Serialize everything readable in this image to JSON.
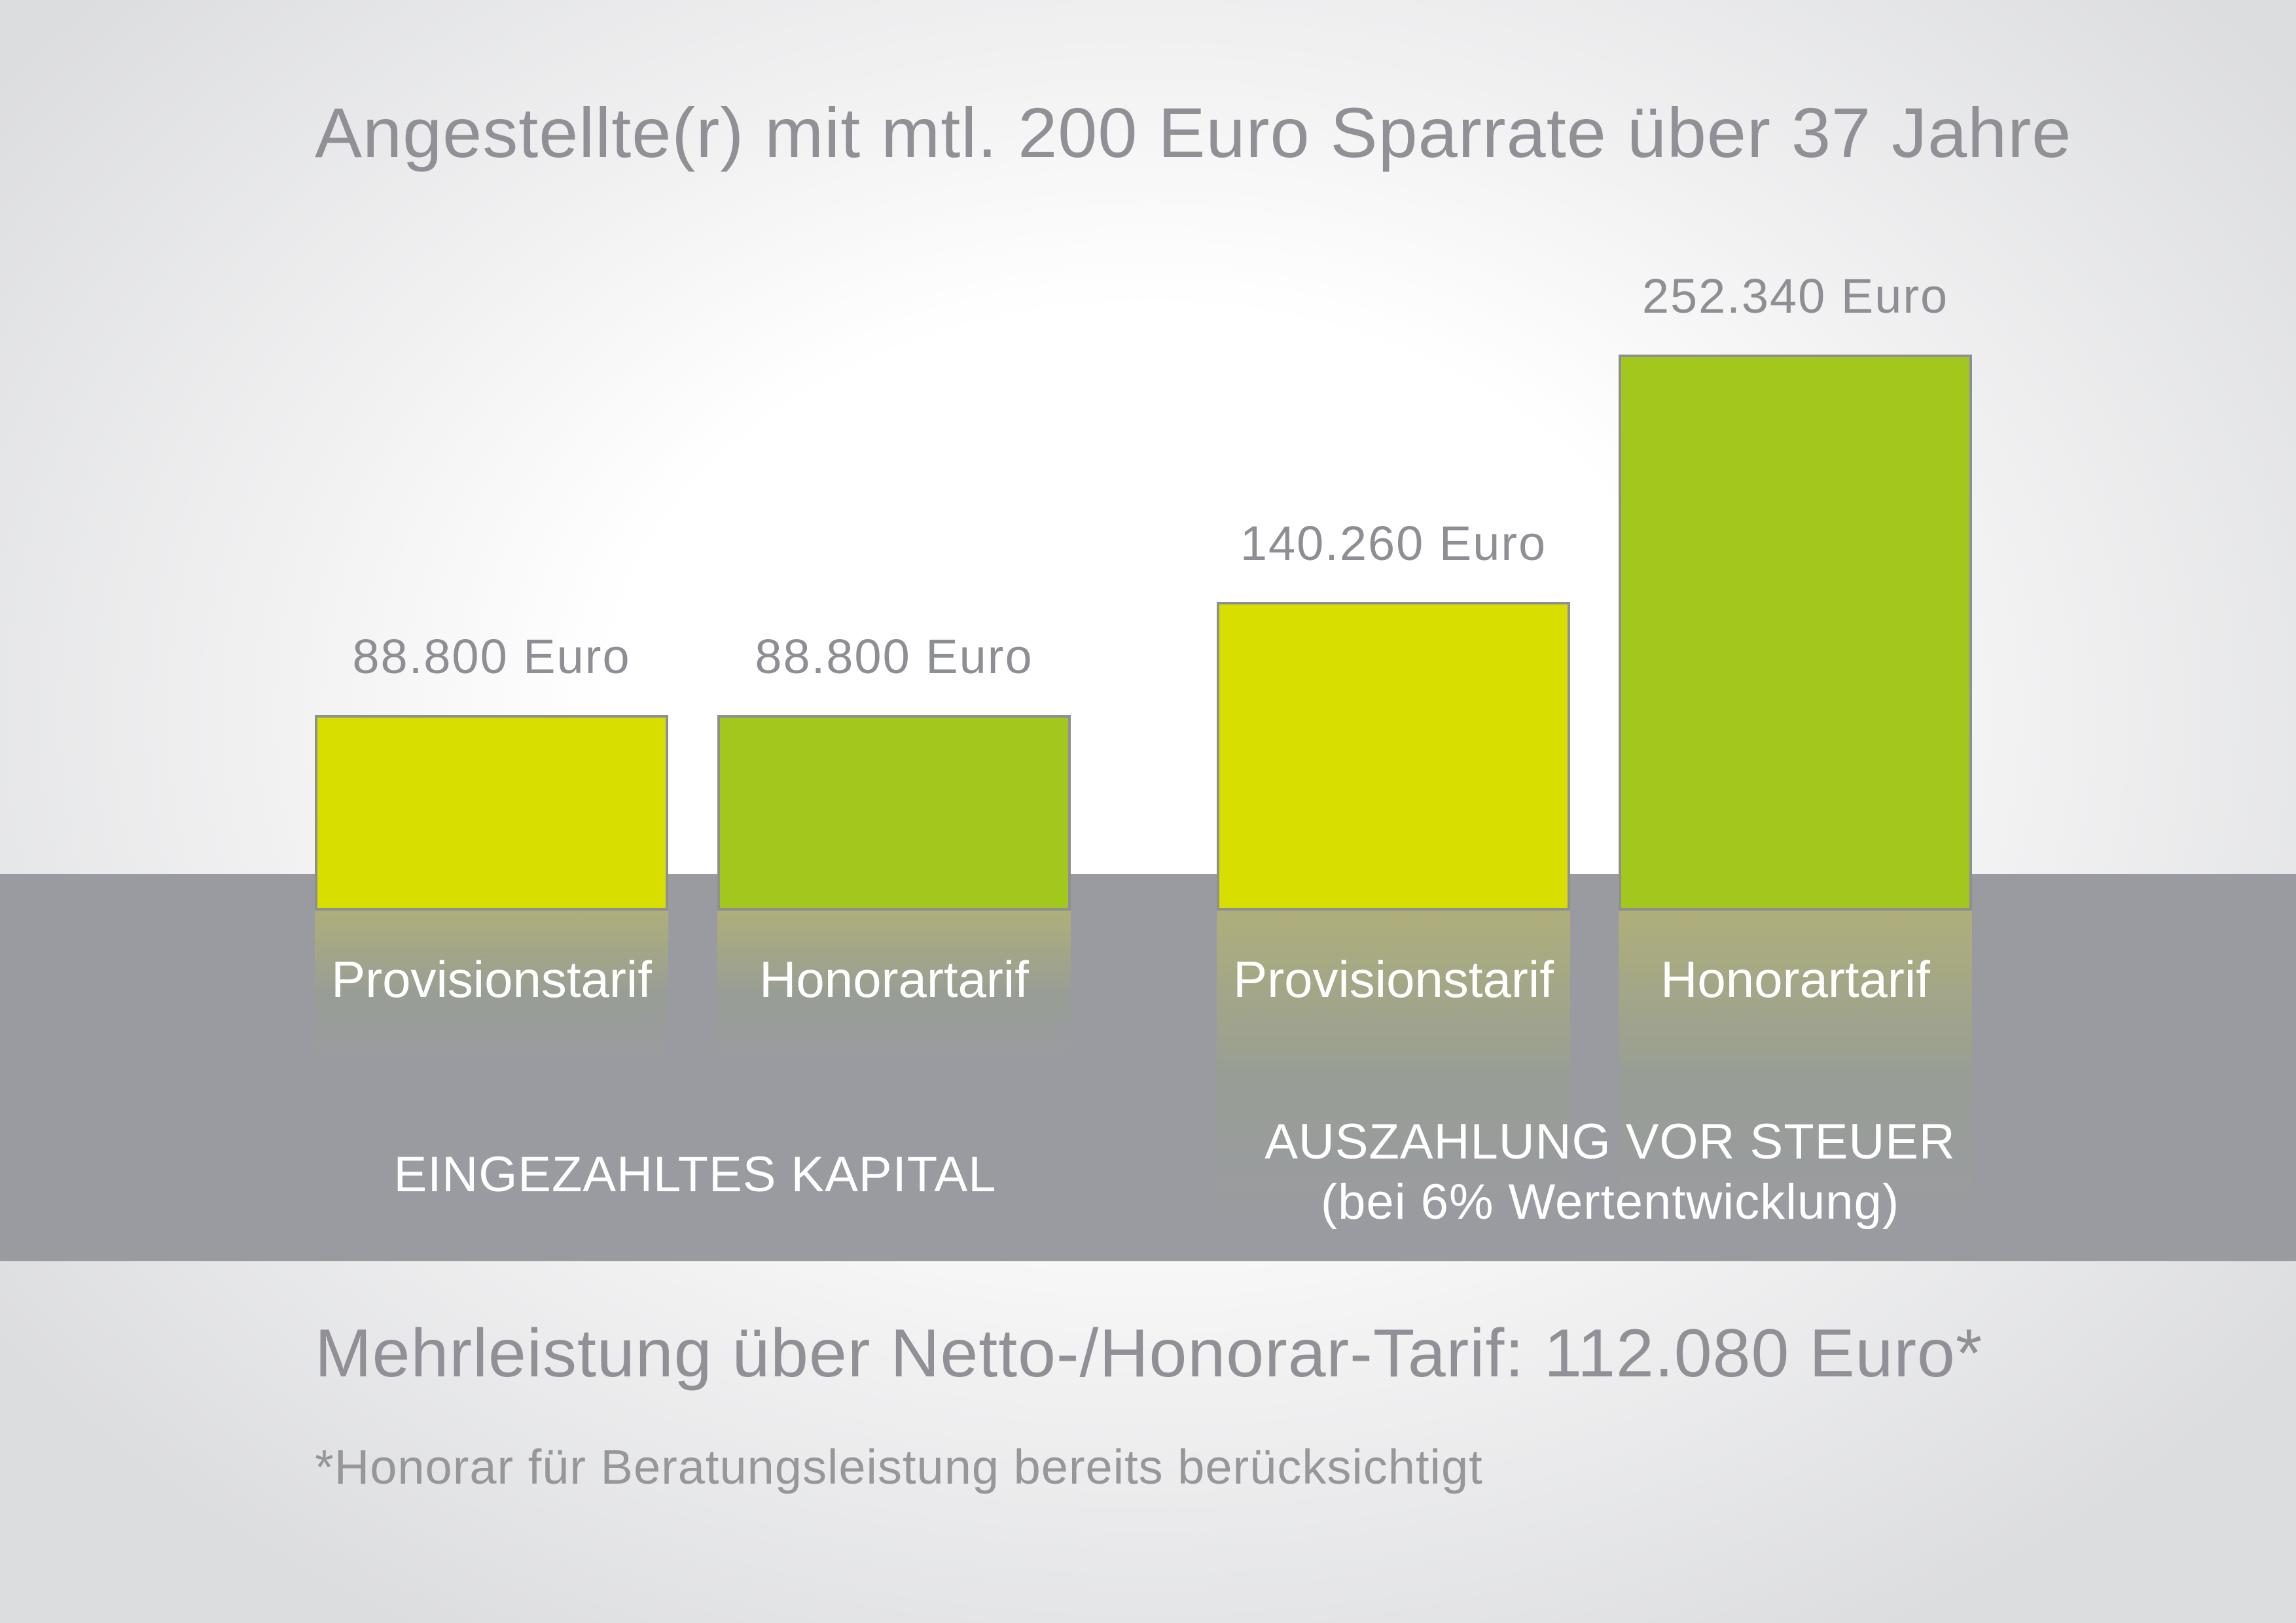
{
  "colors": {
    "provision": "#d8df00",
    "honorar": "#a3c81d",
    "band": "#9a9ba0",
    "text_gray": "#909096"
  },
  "chart_data": {
    "type": "bar",
    "title": "Angestellte(r) mit mtl. 200 Euro Sparrate über 37 Jahre",
    "ylim": [
      0,
      252340
    ],
    "groups": [
      {
        "name": "EINGEZAHLTES KAPITAL",
        "subtitle": "",
        "bars": [
          {
            "category": "Provisionstarif",
            "value": 88800,
            "label": "88.800 Euro",
            "color": "#d8df00"
          },
          {
            "category": "Honorartarif",
            "value": 88800,
            "label": "88.800 Euro",
            "color": "#a3c81d"
          }
        ]
      },
      {
        "name": "AUSZAHLUNG VOR STEUER",
        "subtitle": "(bei 6% Wertentwicklung)",
        "bars": [
          {
            "category": "Provisionstarif",
            "value": 140260,
            "label": "140.260 Euro",
            "color": "#d8df00"
          },
          {
            "category": "Honorartarif",
            "value": 252340,
            "label": "252.340 Euro",
            "color": "#a3c81d"
          }
        ]
      }
    ]
  },
  "summary": "Mehrleistung über Netto-/Honorar-Tarif: 112.080 Euro*",
  "footnote": "*Honorar für Beratungsleistung bereits berücksichtigt"
}
